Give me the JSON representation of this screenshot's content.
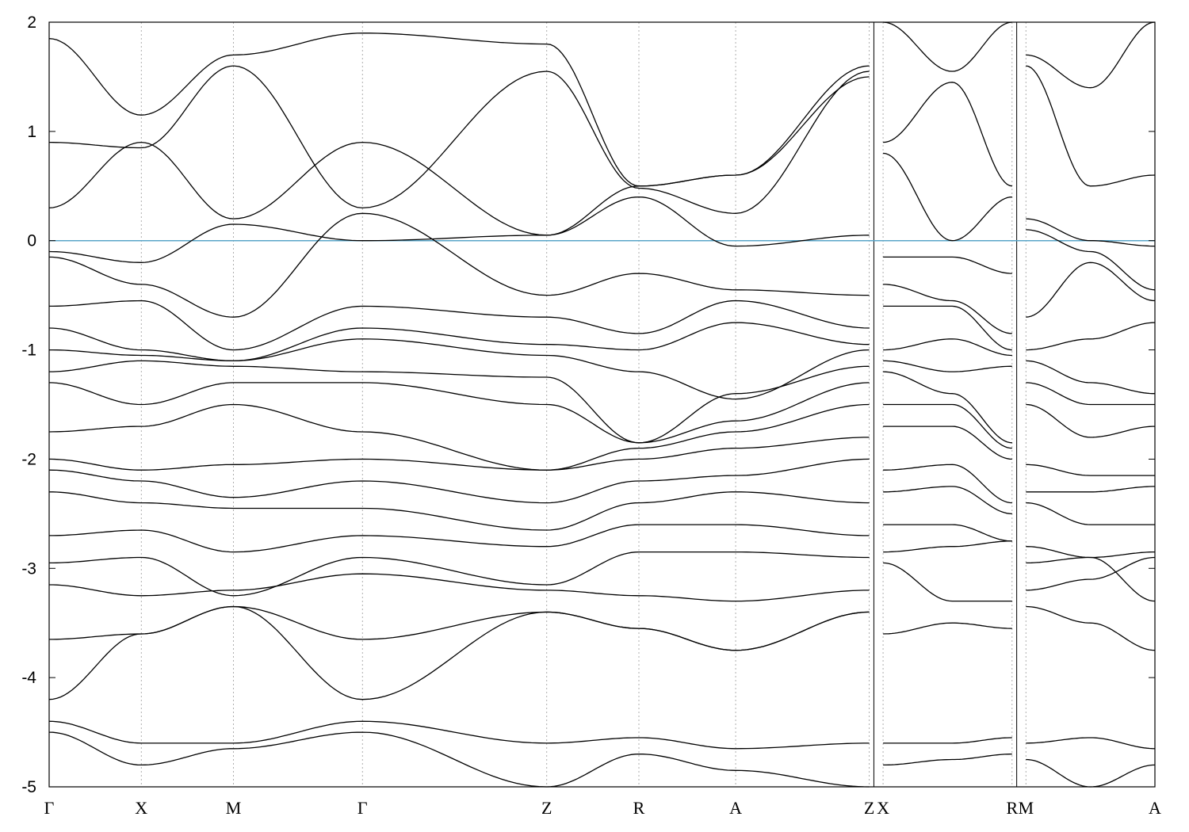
{
  "chart_data": {
    "type": "line",
    "title": "",
    "xlabel": "",
    "ylabel": "",
    "ylim": [
      -5,
      2
    ],
    "yticks": [
      2,
      1,
      0,
      -1,
      -2,
      -3,
      -4,
      -5
    ],
    "ytick_labels": [
      "2",
      "1",
      "0",
      "-1",
      "-2",
      "-3",
      "-4",
      "-5"
    ],
    "grid": "vertical dotted lines at high-symmetry points",
    "fermi_level": 0,
    "fermi_color": "#5aa6c8",
    "line_color": "#000000",
    "segments": [
      {
        "path": [
          "Γ",
          "X",
          "M",
          "Γ",
          "Z",
          "R",
          "A",
          "Z"
        ],
        "x_range": [
          0,
          8.95
        ]
      },
      {
        "path": [
          "X",
          "R"
        ],
        "x_range": [
          8.95,
          10.5
        ]
      },
      {
        "path": [
          "M",
          "A"
        ],
        "x_range": [
          10.5,
          12.0
        ]
      }
    ],
    "high_symmetry_points": [
      {
        "label": "Γ",
        "x": 0.0
      },
      {
        "label": "X",
        "x": 1.0
      },
      {
        "label": "M",
        "x": 2.0
      },
      {
        "label": "Γ",
        "x": 3.4
      },
      {
        "label": "Z",
        "x": 5.4
      },
      {
        "label": "R",
        "x": 6.4
      },
      {
        "label": "A",
        "x": 7.45
      },
      {
        "label": "Z",
        "x": 8.9
      },
      {
        "label": "X",
        "x": 9.05
      },
      {
        "label": "R",
        "x": 10.45
      },
      {
        "label": "M",
        "x": 10.6
      },
      {
        "label": "A",
        "x": 12.0
      }
    ],
    "series": [
      {
        "segment": 0,
        "x": [
          0,
          1,
          2,
          3.4,
          5.4,
          6.4,
          7.45,
          8.9
        ],
        "y": [
          -0.1,
          -0.2,
          0.15,
          0.0,
          0.05,
          0.4,
          -0.05,
          0.05
        ]
      },
      {
        "segment": 0,
        "x": [
          0,
          1,
          2,
          3.4,
          5.4,
          6.4,
          7.45,
          8.9
        ],
        "y": [
          0.3,
          0.9,
          0.2,
          0.9,
          0.05,
          0.5,
          0.6,
          1.5
        ]
      },
      {
        "segment": 0,
        "x": [
          0,
          1,
          2,
          3.4,
          5.4,
          6.4,
          7.45,
          8.9
        ],
        "y": [
          0.9,
          0.85,
          1.6,
          0.3,
          1.55,
          0.48,
          0.25,
          1.55
        ]
      },
      {
        "segment": 0,
        "x": [
          0,
          1,
          2,
          3.4,
          5.4,
          6.4,
          7.45,
          8.9
        ],
        "y": [
          1.85,
          1.15,
          1.7,
          1.9,
          1.8,
          0.5,
          0.6,
          1.6
        ]
      },
      {
        "segment": 0,
        "x": [
          0,
          1,
          2,
          3.4,
          5.4,
          6.4,
          7.45,
          8.9
        ],
        "y": [
          -0.15,
          -0.4,
          -0.7,
          0.25,
          -0.5,
          -0.3,
          -0.45,
          -0.5
        ]
      },
      {
        "segment": 0,
        "x": [
          0,
          1,
          2,
          3.4,
          5.4,
          6.4,
          7.45,
          8.9
        ],
        "y": [
          -0.6,
          -0.55,
          -1.0,
          -0.6,
          -0.7,
          -0.85,
          -0.55,
          -0.8
        ]
      },
      {
        "segment": 0,
        "x": [
          0,
          1,
          2,
          3.4,
          5.4,
          6.4,
          7.45,
          8.9
        ],
        "y": [
          -0.8,
          -1.0,
          -1.1,
          -0.8,
          -0.95,
          -1.0,
          -0.75,
          -0.95
        ]
      },
      {
        "segment": 0,
        "x": [
          0,
          1,
          2,
          3.4,
          5.4,
          6.4,
          7.45,
          8.9
        ],
        "y": [
          -1.0,
          -1.05,
          -1.1,
          -0.9,
          -1.05,
          -1.2,
          -1.45,
          -1.0
        ]
      },
      {
        "segment": 0,
        "x": [
          0,
          1,
          2,
          3.4,
          5.4,
          6.4,
          7.45,
          8.9
        ],
        "y": [
          -1.2,
          -1.1,
          -1.15,
          -1.2,
          -1.25,
          -1.85,
          -1.4,
          -1.15
        ]
      },
      {
        "segment": 0,
        "x": [
          0,
          1,
          2,
          3.4,
          5.4,
          6.4,
          7.45,
          8.9
        ],
        "y": [
          -1.3,
          -1.5,
          -1.3,
          -1.3,
          -1.5,
          -1.85,
          -1.65,
          -1.3
        ]
      },
      {
        "segment": 0,
        "x": [
          0,
          1,
          2,
          3.4,
          5.4,
          6.4,
          7.45,
          8.9
        ],
        "y": [
          -1.75,
          -1.7,
          -1.5,
          -1.75,
          -2.1,
          -1.9,
          -1.75,
          -1.5
        ]
      },
      {
        "segment": 0,
        "x": [
          0,
          1,
          2,
          3.4,
          5.4,
          6.4,
          7.45,
          8.9
        ],
        "y": [
          -2.0,
          -2.1,
          -2.05,
          -2.0,
          -2.1,
          -2.0,
          -1.9,
          -1.8
        ]
      },
      {
        "segment": 0,
        "x": [
          0,
          1,
          2,
          3.4,
          5.4,
          6.4,
          7.45,
          8.9
        ],
        "y": [
          -2.1,
          -2.2,
          -2.35,
          -2.2,
          -2.4,
          -2.2,
          -2.15,
          -2.0
        ]
      },
      {
        "segment": 0,
        "x": [
          0,
          1,
          2,
          3.4,
          5.4,
          6.4,
          7.45,
          8.9
        ],
        "y": [
          -2.3,
          -2.4,
          -2.45,
          -2.45,
          -2.65,
          -2.4,
          -2.3,
          -2.4
        ]
      },
      {
        "segment": 0,
        "x": [
          0,
          1,
          2,
          3.4,
          5.4,
          6.4,
          7.45,
          8.9
        ],
        "y": [
          -2.7,
          -2.65,
          -2.85,
          -2.7,
          -2.8,
          -2.6,
          -2.6,
          -2.7
        ]
      },
      {
        "segment": 0,
        "x": [
          0,
          1,
          2,
          3.4,
          5.4,
          6.4,
          7.45,
          8.9
        ],
        "y": [
          -2.95,
          -2.9,
          -3.25,
          -2.9,
          -3.15,
          -2.85,
          -2.85,
          -2.9
        ]
      },
      {
        "segment": 0,
        "x": [
          0,
          1,
          2,
          3.4,
          5.4,
          6.4,
          7.45,
          8.9
        ],
        "y": [
          -3.15,
          -3.25,
          -3.2,
          -3.05,
          -3.2,
          -3.25,
          -3.3,
          -3.2
        ]
      },
      {
        "segment": 0,
        "x": [
          0,
          1,
          2,
          3.4,
          5.4,
          6.4,
          7.45,
          8.9
        ],
        "y": [
          -3.65,
          -3.6,
          -3.35,
          -3.65,
          -3.4,
          -3.55,
          -3.75,
          -3.4
        ]
      },
      {
        "segment": 0,
        "x": [
          0,
          1,
          2,
          3.4,
          5.4,
          6.4,
          7.45,
          8.9
        ],
        "y": [
          -4.2,
          -3.6,
          -3.35,
          -4.2,
          -3.4,
          -3.55,
          -3.75,
          -3.4
        ]
      },
      {
        "segment": 0,
        "x": [
          0,
          1,
          2,
          3.4,
          5.4,
          6.4,
          7.45,
          8.9
        ],
        "y": [
          -4.4,
          -4.6,
          -4.6,
          -4.4,
          -4.6,
          -4.55,
          -4.65,
          -4.6
        ]
      },
      {
        "segment": 0,
        "x": [
          0,
          1,
          2,
          3.4,
          5.4,
          6.4,
          7.45,
          8.9
        ],
        "y": [
          -4.5,
          -4.8,
          -4.65,
          -4.5,
          -5.0,
          -4.7,
          -4.85,
          -5.0
        ]
      },
      {
        "segment": 1,
        "x": [
          9.05,
          9.8,
          10.45
        ],
        "y": [
          -0.15,
          -0.15,
          -0.3
        ]
      },
      {
        "segment": 1,
        "x": [
          9.05,
          9.8,
          10.45
        ],
        "y": [
          0.8,
          0.0,
          0.4
        ]
      },
      {
        "segment": 1,
        "x": [
          9.05,
          9.8,
          10.45
        ],
        "y": [
          0.9,
          1.45,
          0.5
        ]
      },
      {
        "segment": 1,
        "x": [
          9.05,
          9.8,
          10.45
        ],
        "y": [
          2.0,
          1.55,
          2.0
        ]
      },
      {
        "segment": 1,
        "x": [
          9.05,
          9.8,
          10.45
        ],
        "y": [
          -0.4,
          -0.55,
          -0.85
        ]
      },
      {
        "segment": 1,
        "x": [
          9.05,
          9.8,
          10.45
        ],
        "y": [
          -0.6,
          -0.6,
          -1.0
        ]
      },
      {
        "segment": 1,
        "x": [
          9.05,
          9.8,
          10.45
        ],
        "y": [
          -1.0,
          -0.9,
          -1.05
        ]
      },
      {
        "segment": 1,
        "x": [
          9.05,
          9.8,
          10.45
        ],
        "y": [
          -1.1,
          -1.2,
          -1.15
        ]
      },
      {
        "segment": 1,
        "x": [
          9.05,
          9.8,
          10.45
        ],
        "y": [
          -1.2,
          -1.4,
          -1.85
        ]
      },
      {
        "segment": 1,
        "x": [
          9.05,
          9.8,
          10.45
        ],
        "y": [
          -1.5,
          -1.5,
          -1.9
        ]
      },
      {
        "segment": 1,
        "x": [
          9.05,
          9.8,
          10.45
        ],
        "y": [
          -1.7,
          -1.7,
          -2.0
        ]
      },
      {
        "segment": 1,
        "x": [
          9.05,
          9.8,
          10.45
        ],
        "y": [
          -2.1,
          -2.05,
          -2.4
        ]
      },
      {
        "segment": 1,
        "x": [
          9.05,
          9.8,
          10.45
        ],
        "y": [
          -2.3,
          -2.25,
          -2.5
        ]
      },
      {
        "segment": 1,
        "x": [
          9.05,
          9.8,
          10.45
        ],
        "y": [
          -2.6,
          -2.6,
          -2.75
        ]
      },
      {
        "segment": 1,
        "x": [
          9.05,
          9.8,
          10.45
        ],
        "y": [
          -2.85,
          -2.8,
          -2.75
        ]
      },
      {
        "segment": 1,
        "x": [
          9.05,
          9.8,
          10.45
        ],
        "y": [
          -2.95,
          -3.3,
          -3.3
        ]
      },
      {
        "segment": 1,
        "x": [
          9.05,
          9.8,
          10.45
        ],
        "y": [
          -3.6,
          -3.5,
          -3.55
        ]
      },
      {
        "segment": 1,
        "x": [
          9.05,
          9.8,
          10.45
        ],
        "y": [
          -4.6,
          -4.6,
          -4.55
        ]
      },
      {
        "segment": 1,
        "x": [
          9.05,
          9.8,
          10.45
        ],
        "y": [
          -4.8,
          -4.75,
          -4.7
        ]
      },
      {
        "segment": 2,
        "x": [
          10.6,
          11.3,
          12.0
        ],
        "y": [
          1.7,
          1.4,
          2.0
        ]
      },
      {
        "segment": 2,
        "x": [
          10.6,
          11.3,
          12.0
        ],
        "y": [
          1.6,
          0.5,
          0.6
        ]
      },
      {
        "segment": 2,
        "x": [
          10.6,
          11.3,
          12.0
        ],
        "y": [
          0.2,
          0.0,
          -0.05
        ]
      },
      {
        "segment": 2,
        "x": [
          10.6,
          11.3,
          12.0
        ],
        "y": [
          0.1,
          -0.1,
          -0.45
        ]
      },
      {
        "segment": 2,
        "x": [
          10.6,
          11.3,
          12.0
        ],
        "y": [
          -0.7,
          -0.2,
          -0.55
        ]
      },
      {
        "segment": 2,
        "x": [
          10.6,
          11.3,
          12.0
        ],
        "y": [
          -1.0,
          -0.9,
          -0.75
        ]
      },
      {
        "segment": 2,
        "x": [
          10.6,
          11.3,
          12.0
        ],
        "y": [
          -1.1,
          -1.3,
          -1.4
        ]
      },
      {
        "segment": 2,
        "x": [
          10.6,
          11.3,
          12.0
        ],
        "y": [
          -1.3,
          -1.5,
          -1.5
        ]
      },
      {
        "segment": 2,
        "x": [
          10.6,
          11.3,
          12.0
        ],
        "y": [
          -1.5,
          -1.8,
          -1.7
        ]
      },
      {
        "segment": 2,
        "x": [
          10.6,
          11.3,
          12.0
        ],
        "y": [
          -2.05,
          -2.15,
          -2.15
        ]
      },
      {
        "segment": 2,
        "x": [
          10.6,
          11.3,
          12.0
        ],
        "y": [
          -2.3,
          -2.3,
          -2.25
        ]
      },
      {
        "segment": 2,
        "x": [
          10.6,
          11.3,
          12.0
        ],
        "y": [
          -2.4,
          -2.6,
          -2.6
        ]
      },
      {
        "segment": 2,
        "x": [
          10.6,
          11.3,
          12.0
        ],
        "y": [
          -2.8,
          -2.9,
          -2.85
        ]
      },
      {
        "segment": 2,
        "x": [
          10.6,
          11.3,
          12.0
        ],
        "y": [
          -2.95,
          -2.9,
          -3.3
        ]
      },
      {
        "segment": 2,
        "x": [
          10.6,
          11.3,
          12.0
        ],
        "y": [
          -3.2,
          -3.1,
          -2.9
        ]
      },
      {
        "segment": 2,
        "x": [
          10.6,
          11.3,
          12.0
        ],
        "y": [
          -3.35,
          -3.5,
          -3.75
        ]
      },
      {
        "segment": 2,
        "x": [
          10.6,
          11.3,
          12.0
        ],
        "y": [
          -4.6,
          -4.55,
          -4.65
        ]
      },
      {
        "segment": 2,
        "x": [
          10.6,
          11.3,
          12.0
        ],
        "y": [
          -4.75,
          -5.0,
          -4.8
        ]
      }
    ]
  }
}
